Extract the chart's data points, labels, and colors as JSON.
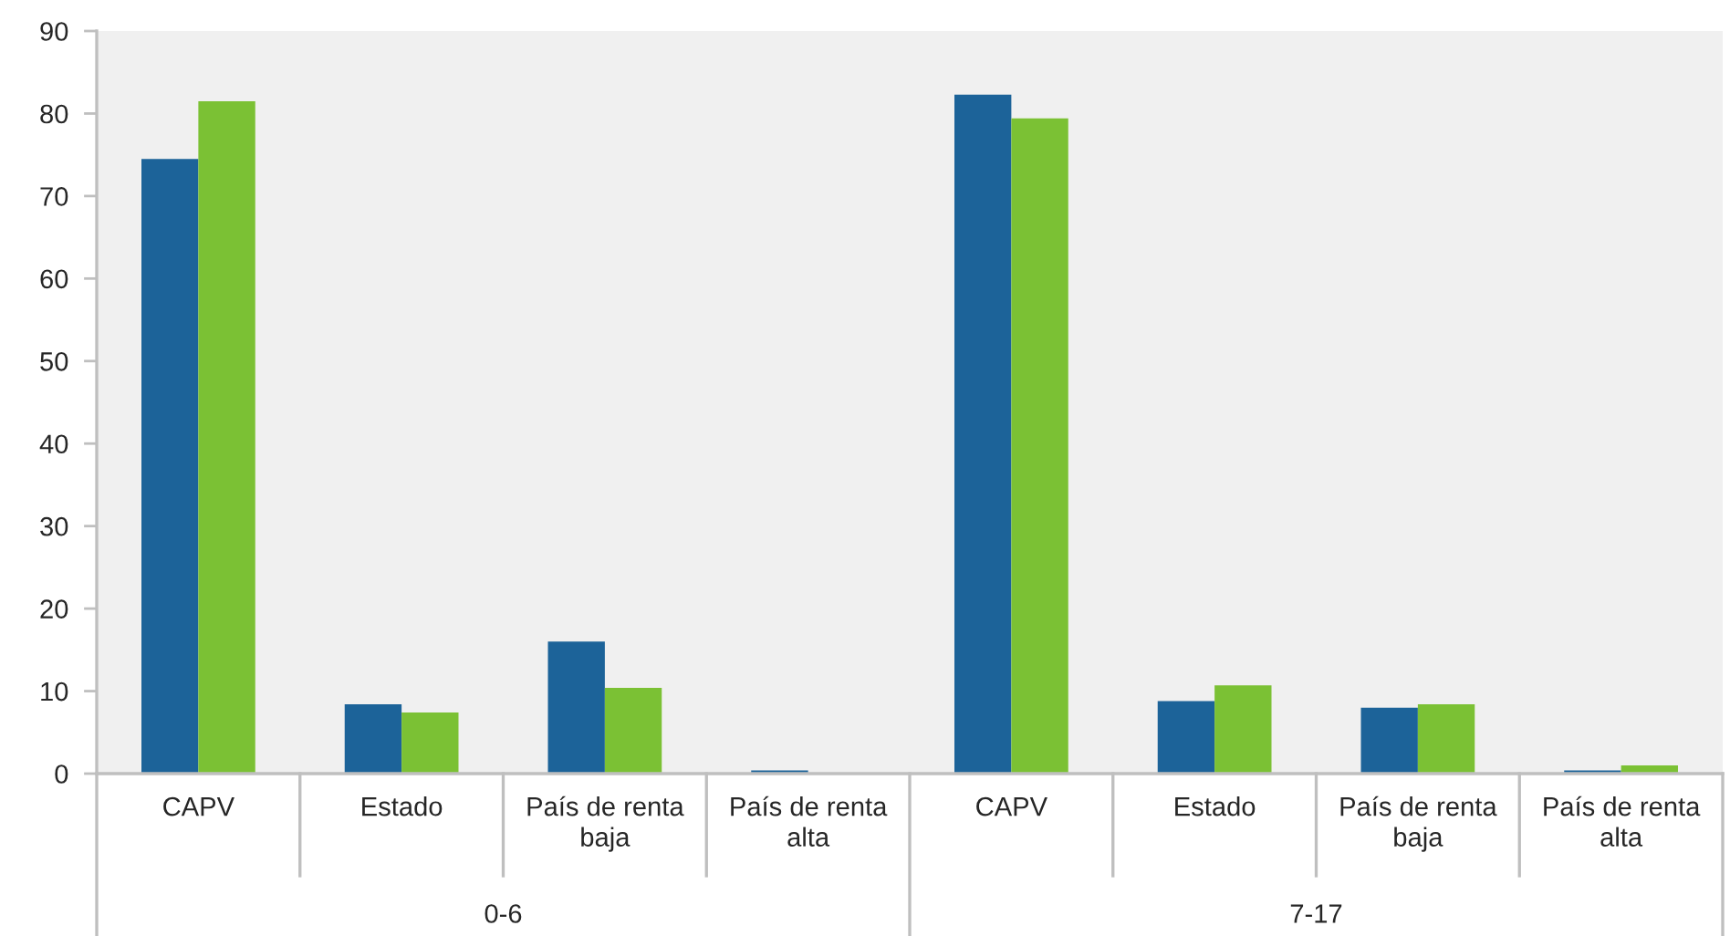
{
  "chart_data": {
    "type": "bar",
    "categories": [
      "CAPV",
      "Estado",
      "País de renta\nbaja",
      "País de renta\nalta",
      "CAPV",
      "Estado",
      "País de renta\nbaja",
      "País de renta\nalta"
    ],
    "series": [
      {
        "color": "#1c6399",
        "values": [
          74.5,
          8.4,
          16.0,
          0.4,
          82.3,
          8.8,
          8.0,
          0.4
        ]
      },
      {
        "color": "#7bc134",
        "values": [
          81.5,
          7.4,
          10.4,
          0,
          79.4,
          10.7,
          8.4,
          1.0
        ]
      }
    ],
    "annotations": [
      "0-6",
      "7-17"
    ],
    "ylim": [
      0,
      90
    ],
    "yticks": [
      0,
      10,
      20,
      30,
      40,
      50,
      60,
      70,
      80,
      90
    ],
    "grid": false
  }
}
